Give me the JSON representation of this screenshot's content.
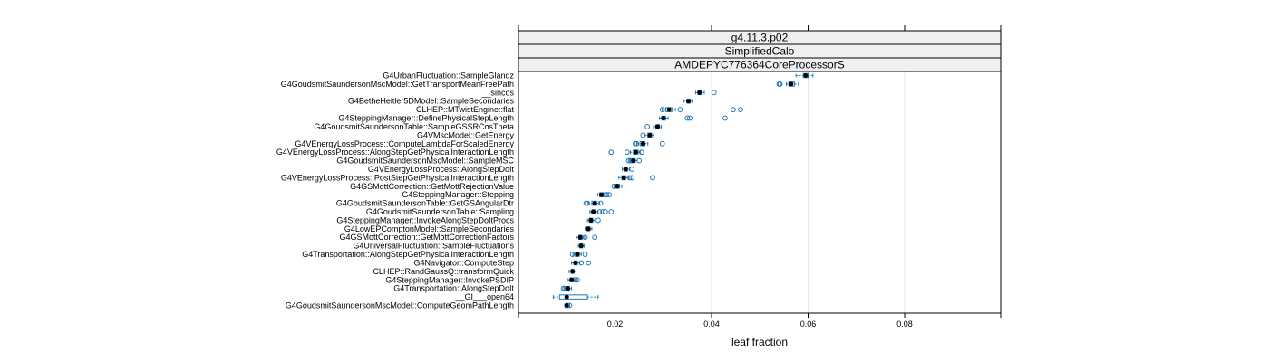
{
  "chart_data": {
    "type": "box",
    "strips": [
      "g4.11.3.p02",
      "SimplifiedCalo",
      "AMDEPYC776364CoreProcessorS"
    ],
    "xlabel": "leaf fraction",
    "xlim": [
      0,
      0.1
    ],
    "xticks": [
      0.02,
      0.04,
      0.06,
      0.08
    ],
    "xtick_labels": [
      "0.02",
      "0.04",
      "0.06",
      "0.08"
    ],
    "grid": true,
    "colors": {
      "box": "#1f78b4",
      "median": "#000000",
      "strip": "#f0f0f0",
      "grid": "#e6e6e6"
    },
    "categories": [
      {
        "label": "G4UrbanFluctuation::SampleGlandz",
        "median": 0.0595,
        "q1": 0.059,
        "q3": 0.06,
        "wlo": 0.0575,
        "whi": 0.061,
        "outliers": []
      },
      {
        "label": "G4GoudsmitSaundersonMscModel::GetTransportMeanFreePath",
        "median": 0.0565,
        "q1": 0.056,
        "q3": 0.0572,
        "wlo": 0.0555,
        "whi": 0.058,
        "outliers": [
          0.054,
          0.0542
        ]
      },
      {
        "label": "__sincos",
        "median": 0.0375,
        "q1": 0.0372,
        "q3": 0.038,
        "wlo": 0.0367,
        "whi": 0.0385,
        "outliers": [
          0.0405
        ]
      },
      {
        "label": "G4BetheHeitler5DModel::SampleSecondaries",
        "median": 0.0352,
        "q1": 0.0349,
        "q3": 0.0356,
        "wlo": 0.0342,
        "whi": 0.036,
        "outliers": []
      },
      {
        "label": "CLHEP::MTwistEngine::flat",
        "median": 0.0312,
        "q1": 0.0305,
        "q3": 0.0318,
        "wlo": 0.0298,
        "whi": 0.0325,
        "outliers": [
          0.0298,
          0.0335,
          0.0445,
          0.046
        ]
      },
      {
        "label": "G4SteppingManager::DefinePhysicalStepLength",
        "median": 0.03,
        "q1": 0.0297,
        "q3": 0.0305,
        "wlo": 0.0292,
        "whi": 0.031,
        "outliers": [
          0.035,
          0.0355,
          0.0428
        ]
      },
      {
        "label": "G4GoudsmitSaundersonTable::SampleGSSRCosTheta",
        "median": 0.0288,
        "q1": 0.0285,
        "q3": 0.0292,
        "wlo": 0.028,
        "whi": 0.0296,
        "outliers": [
          0.0267
        ]
      },
      {
        "label": "G4VMscModel::GetEnergy",
        "median": 0.0272,
        "q1": 0.0268,
        "q3": 0.0276,
        "wlo": 0.0262,
        "whi": 0.028,
        "outliers": [
          0.0258
        ]
      },
      {
        "label": "G4VEnergyLossProcess::ComputeLambdaForScaledEnergy",
        "median": 0.0258,
        "q1": 0.0252,
        "q3": 0.0262,
        "wlo": 0.0245,
        "whi": 0.0268,
        "outliers": [
          0.0242,
          0.0245,
          0.0298
        ]
      },
      {
        "label": "G4VEnergyLossProcess::AlongStepGetPhysicalInteractionLength",
        "median": 0.0243,
        "q1": 0.0238,
        "q3": 0.0248,
        "wlo": 0.0232,
        "whi": 0.0253,
        "outliers": [
          0.0192,
          0.0225,
          0.0255
        ]
      },
      {
        "label": "G4GoudsmitSaundersonMscModel::SampleMSC",
        "median": 0.0238,
        "q1": 0.0234,
        "q3": 0.0242,
        "wlo": 0.023,
        "whi": 0.0246,
        "outliers": [
          0.0228,
          0.0232,
          0.025
        ]
      },
      {
        "label": "G4VEnergyLossProcess::AlongStepDoIt",
        "median": 0.0222,
        "q1": 0.0219,
        "q3": 0.0226,
        "wlo": 0.0215,
        "whi": 0.023,
        "outliers": [
          0.0235
        ]
      },
      {
        "label": "G4VEnergyLossProcess::PostStepGetPhysicalInteractionLength",
        "median": 0.0218,
        "q1": 0.0214,
        "q3": 0.0222,
        "wlo": 0.0208,
        "whi": 0.0228,
        "outliers": [
          0.023,
          0.0235,
          0.0278
        ]
      },
      {
        "label": "G4GSMottCorrection::GetMottRejectionValue",
        "median": 0.0205,
        "q1": 0.0202,
        "q3": 0.0209,
        "wlo": 0.0198,
        "whi": 0.0214,
        "outliers": [
          0.0198
        ]
      },
      {
        "label": "G4SteppingManager::Stepping",
        "median": 0.0172,
        "q1": 0.0168,
        "q3": 0.0176,
        "wlo": 0.0164,
        "whi": 0.018,
        "outliers": [
          0.018,
          0.0183,
          0.0188
        ]
      },
      {
        "label": "G4GoudsmitSaundersonTable::GetGSAngularDtr",
        "median": 0.0158,
        "q1": 0.0152,
        "q3": 0.0162,
        "wlo": 0.0145,
        "whi": 0.0168,
        "outliers": [
          0.014,
          0.0143,
          0.017
        ]
      },
      {
        "label": "G4GoudsmitSaundersonTable::Sampling",
        "median": 0.0155,
        "q1": 0.0152,
        "q3": 0.016,
        "wlo": 0.0148,
        "whi": 0.0165,
        "outliers": [
          0.0168,
          0.0175,
          0.018,
          0.0192
        ]
      },
      {
        "label": "G4SteppingManager::InvokeAlongStepDoItProcs",
        "median": 0.015,
        "q1": 0.0147,
        "q3": 0.0154,
        "wlo": 0.0143,
        "whi": 0.0158,
        "outliers": [
          0.0165
        ]
      },
      {
        "label": "G4LowEPComptonModel::SampleSecondaries",
        "median": 0.0145,
        "q1": 0.0142,
        "q3": 0.0148,
        "wlo": 0.0138,
        "whi": 0.0152,
        "outliers": []
      },
      {
        "label": "G4GSMottCorrection::GetMottCorrectionFactors",
        "median": 0.0128,
        "q1": 0.0125,
        "q3": 0.0132,
        "wlo": 0.012,
        "whi": 0.0137,
        "outliers": [
          0.0138,
          0.0158
        ]
      },
      {
        "label": "G4UniversalFluctuation::SampleFluctuations",
        "median": 0.013,
        "q1": 0.0127,
        "q3": 0.0133,
        "wlo": 0.0124,
        "whi": 0.0136,
        "outliers": []
      },
      {
        "label": "G4Transportation::AlongStepGetPhysicalInteractionLength",
        "median": 0.0122,
        "q1": 0.0118,
        "q3": 0.0126,
        "wlo": 0.0113,
        "whi": 0.013,
        "outliers": [
          0.0112,
          0.0138
        ]
      },
      {
        "label": "G4Navigator::ComputeStep",
        "median": 0.0118,
        "q1": 0.0115,
        "q3": 0.0122,
        "wlo": 0.011,
        "whi": 0.0127,
        "outliers": [
          0.013,
          0.0145
        ]
      },
      {
        "label": "CLHEP::RandGaussQ::transformQuick",
        "median": 0.0112,
        "q1": 0.0109,
        "q3": 0.0115,
        "wlo": 0.0105,
        "whi": 0.0119,
        "outliers": []
      },
      {
        "label": "G4SteppingManager::InvokePSDIP",
        "median": 0.011,
        "q1": 0.0107,
        "q3": 0.0115,
        "wlo": 0.0103,
        "whi": 0.012,
        "outliers": [
          0.0118,
          0.0122
        ]
      },
      {
        "label": "G4Transportation::AlongStepDoIt",
        "median": 0.0102,
        "q1": 0.0099,
        "q3": 0.0106,
        "wlo": 0.0095,
        "whi": 0.011,
        "outliers": [
          0.0093,
          0.0096
        ]
      },
      {
        "label": "__GI___open64",
        "median": 0.01,
        "q1": 0.0085,
        "q3": 0.0143,
        "wlo": 0.0072,
        "whi": 0.0165,
        "outliers": []
      },
      {
        "label": "G4GoudsmitSaundersonMscModel::ComputeGeomPathLength",
        "median": 0.01,
        "q1": 0.0098,
        "q3": 0.0103,
        "wlo": 0.0096,
        "whi": 0.0106,
        "outliers": [
          0.0106
        ]
      }
    ]
  }
}
